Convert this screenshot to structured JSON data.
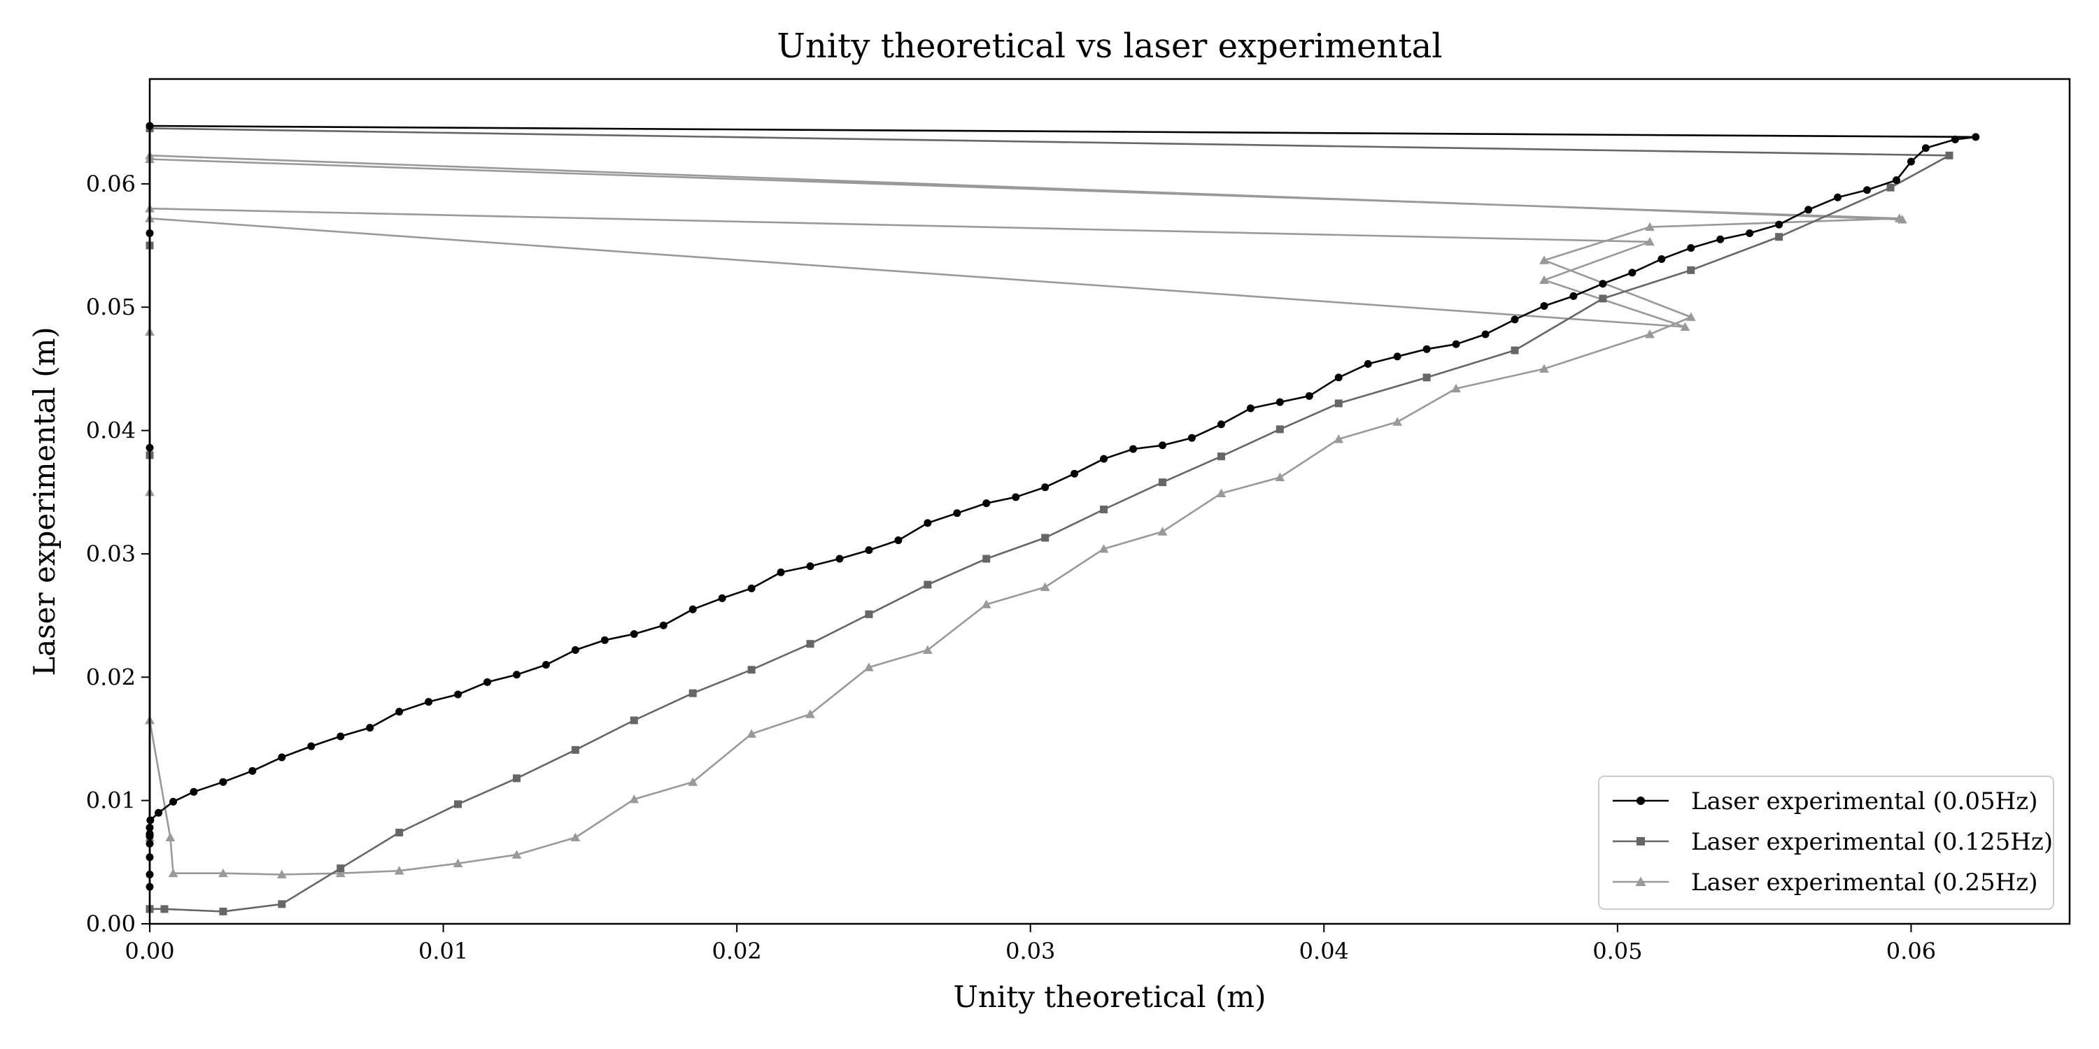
{
  "chart_data": {
    "type": "line",
    "title": "Unity theoretical vs laser experimental",
    "xlabel": "Unity theoretical (m)",
    "ylabel": "Laser experimental (m)",
    "xlim": [
      0,
      0.0654
    ],
    "ylim": [
      0,
      0.0685
    ],
    "xticks": [
      0,
      0.01,
      0.02,
      0.03,
      0.04,
      0.05,
      0.06
    ],
    "xtick_labels": [
      "0.00",
      "0.01",
      "0.02",
      "0.03",
      "0.04",
      "0.05",
      "0.06"
    ],
    "yticks": [
      0,
      0.01,
      0.02,
      0.03,
      0.04,
      0.05,
      0.06
    ],
    "ytick_labels": [
      "0.00",
      "0.01",
      "0.02",
      "0.03",
      "0.04",
      "0.05",
      "0.06"
    ],
    "grid": false,
    "legend_position": "bottom-right",
    "series": [
      {
        "name": "Laser experimental (0.05Hz)",
        "color": "#000000",
        "marker": "circle",
        "points": [
          [
            0,
            0.003
          ],
          [
            0,
            0.0054
          ],
          [
            0,
            0.0386
          ],
          [
            0,
            0.056
          ],
          [
            0,
            0.0647
          ],
          [
            0.0622,
            0.0638
          ],
          [
            0.0615,
            0.0636
          ],
          [
            0.0605,
            0.0629
          ],
          [
            0.06,
            0.0618
          ],
          [
            0.0595,
            0.0603
          ],
          [
            0.0585,
            0.0595
          ],
          [
            0.0575,
            0.0589
          ],
          [
            0.0565,
            0.0579
          ],
          [
            0.0555,
            0.0567
          ],
          [
            0.0545,
            0.056
          ],
          [
            0.0535,
            0.0555
          ],
          [
            0.0525,
            0.0548
          ],
          [
            0.0515,
            0.0539
          ],
          [
            0.0505,
            0.0528
          ],
          [
            0.0495,
            0.0519
          ],
          [
            0.0485,
            0.0509
          ],
          [
            0.0475,
            0.0501
          ],
          [
            0.0465,
            0.049
          ],
          [
            0.0455,
            0.0478
          ],
          [
            0.0445,
            0.047
          ],
          [
            0.0435,
            0.0466
          ],
          [
            0.0425,
            0.046
          ],
          [
            0.0415,
            0.0454
          ],
          [
            0.0405,
            0.0443
          ],
          [
            0.0395,
            0.0428
          ],
          [
            0.0385,
            0.0423
          ],
          [
            0.0375,
            0.0418
          ],
          [
            0.0365,
            0.0405
          ],
          [
            0.0355,
            0.0394
          ],
          [
            0.0345,
            0.0388
          ],
          [
            0.0335,
            0.0385
          ],
          [
            0.0325,
            0.0377
          ],
          [
            0.0315,
            0.0365
          ],
          [
            0.0305,
            0.0354
          ],
          [
            0.0295,
            0.0346
          ],
          [
            0.0285,
            0.0341
          ],
          [
            0.0275,
            0.0333
          ],
          [
            0.0265,
            0.0325
          ],
          [
            0.0255,
            0.0311
          ],
          [
            0.0245,
            0.0303
          ],
          [
            0.0235,
            0.0296
          ],
          [
            0.0225,
            0.029
          ],
          [
            0.0215,
            0.0285
          ],
          [
            0.0205,
            0.0272
          ],
          [
            0.0195,
            0.0264
          ],
          [
            0.0185,
            0.0255
          ],
          [
            0.0175,
            0.0242
          ],
          [
            0.0165,
            0.0235
          ],
          [
            0.0155,
            0.023
          ],
          [
            0.0145,
            0.0222
          ],
          [
            0.0135,
            0.021
          ],
          [
            0.0125,
            0.0202
          ],
          [
            0.0115,
            0.0196
          ],
          [
            0.0105,
            0.0186
          ],
          [
            0.0095,
            0.018
          ],
          [
            0.0085,
            0.0172
          ],
          [
            0.0075,
            0.0159
          ],
          [
            0.0065,
            0.0152
          ],
          [
            0.0055,
            0.0144
          ],
          [
            0.0045,
            0.0135
          ],
          [
            0.0035,
            0.0124
          ],
          [
            0.0025,
            0.0115
          ],
          [
            0.0015,
            0.0107
          ],
          [
            0.0008,
            0.0099
          ],
          [
            0.0003,
            0.009
          ],
          [
            2e-05,
            0.0084
          ],
          [
            0.0,
            0.0078
          ],
          [
            0.0,
            0.0073
          ],
          [
            0.0,
            0.0072
          ],
          [
            0.0,
            0.0071
          ],
          [
            0.0,
            0.0065
          ],
          [
            0.0,
            0.004
          ]
        ]
      },
      {
        "name": "Laser experimental (0.125Hz)",
        "color": "#666666",
        "marker": "square",
        "points": [
          [
            0,
            0.0012
          ],
          [
            0,
            0.038
          ],
          [
            0,
            0.055
          ],
          [
            0,
            0.0645
          ],
          [
            0.0613,
            0.0623
          ],
          [
            0.0593,
            0.0597
          ],
          [
            0.0555,
            0.0557
          ],
          [
            0.0525,
            0.053
          ],
          [
            0.0495,
            0.0507
          ],
          [
            0.0465,
            0.0465
          ],
          [
            0.0435,
            0.0443
          ],
          [
            0.0405,
            0.0422
          ],
          [
            0.0385,
            0.0401
          ],
          [
            0.0365,
            0.0379
          ],
          [
            0.0345,
            0.0358
          ],
          [
            0.0325,
            0.0336
          ],
          [
            0.0305,
            0.0313
          ],
          [
            0.0285,
            0.0296
          ],
          [
            0.0265,
            0.0275
          ],
          [
            0.0245,
            0.0251
          ],
          [
            0.0225,
            0.0227
          ],
          [
            0.0205,
            0.0206
          ],
          [
            0.0185,
            0.0187
          ],
          [
            0.0165,
            0.0165
          ],
          [
            0.0145,
            0.0141
          ],
          [
            0.0125,
            0.0118
          ],
          [
            0.0105,
            0.0097
          ],
          [
            0.0085,
            0.0074
          ],
          [
            0.0065,
            0.0045
          ],
          [
            0.0045,
            0.0016
          ],
          [
            0.0025,
            0.001
          ],
          [
            0.0005,
            0.0012
          ],
          [
            0.0,
            0.0012
          ]
        ]
      },
      {
        "name": "Laser experimental (0.25Hz)",
        "color": "#999999",
        "marker": "triangle",
        "points": [
          [
            0,
            0.007
          ],
          [
            0,
            0.0165
          ],
          [
            0,
            0.035
          ],
          [
            0,
            0.048
          ],
          [
            0,
            0.062
          ],
          [
            0.0596,
            0.0572
          ],
          [
            0.0511,
            0.0565
          ],
          [
            0.0475,
            0.0538
          ],
          [
            0.0525,
            0.0492
          ],
          [
            0.0511,
            0.0478
          ],
          [
            0.0475,
            0.045
          ],
          [
            0.0445,
            0.0434
          ],
          [
            0.0425,
            0.0407
          ],
          [
            0.0405,
            0.0393
          ],
          [
            0.0385,
            0.0362
          ],
          [
            0.0365,
            0.0349
          ],
          [
            0.0345,
            0.0318
          ],
          [
            0.0325,
            0.0304
          ],
          [
            0.0305,
            0.0273
          ],
          [
            0.0285,
            0.0259
          ],
          [
            0.0265,
            0.0222
          ],
          [
            0.0245,
            0.0208
          ],
          [
            0.0225,
            0.017
          ],
          [
            0.0205,
            0.0154
          ],
          [
            0.0185,
            0.0115
          ],
          [
            0.0165,
            0.0101
          ],
          [
            0.0145,
            0.007
          ],
          [
            0.0125,
            0.0056
          ],
          [
            0.0105,
            0.0049
          ],
          [
            0.0085,
            0.0043
          ],
          [
            0.0065,
            0.0041
          ],
          [
            0.0045,
            0.004
          ],
          [
            0.0025,
            0.0041
          ],
          [
            0.0008,
            0.0041
          ],
          [
            0.0007,
            0.007
          ],
          [
            0.0,
            0.0165
          ],
          [
            0.0,
            0.058
          ],
          [
            0.0511,
            0.0553
          ],
          [
            0.0475,
            0.0522
          ],
          [
            0.0523,
            0.0484
          ],
          [
            0.0,
            0.0572
          ],
          [
            0.0,
            0.0623
          ],
          [
            0.0597,
            0.0571
          ]
        ]
      }
    ]
  }
}
